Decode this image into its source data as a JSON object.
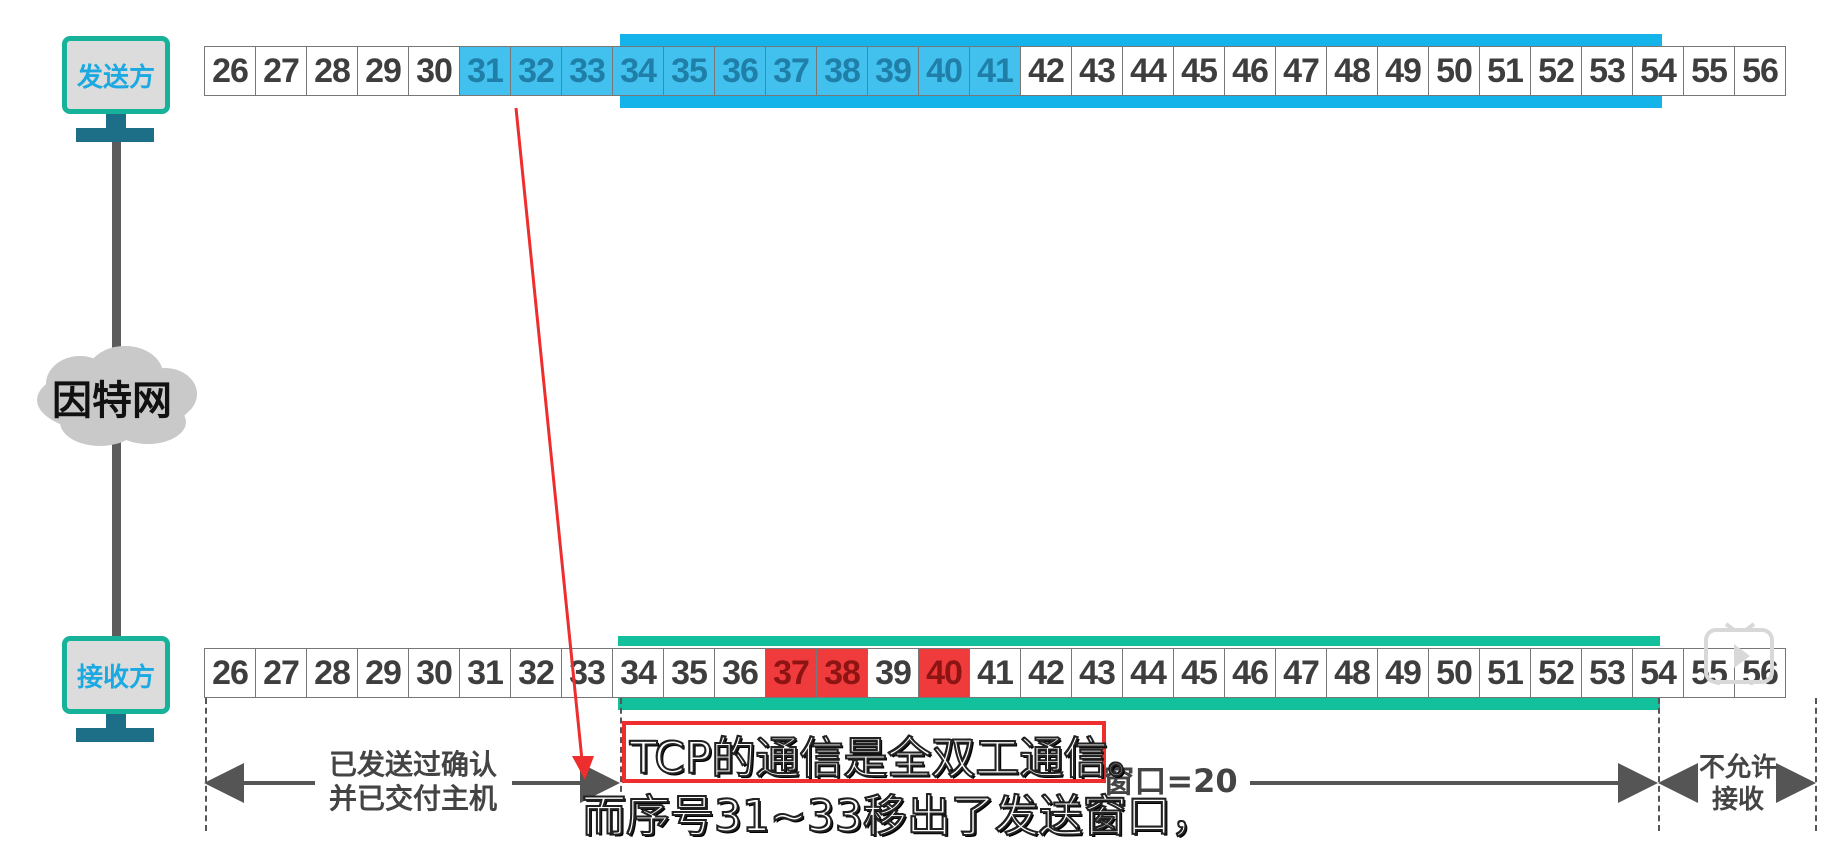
{
  "sender": {
    "label": "发送方"
  },
  "receiver": {
    "label": "接收方"
  },
  "network": {
    "label": "因特网"
  },
  "sender_row": {
    "sequence": [
      26,
      27,
      28,
      29,
      30,
      31,
      32,
      33,
      34,
      35,
      36,
      37,
      38,
      39,
      40,
      41,
      42,
      43,
      44,
      45,
      46,
      47,
      48,
      49,
      50,
      51,
      52,
      53,
      54,
      55,
      56
    ],
    "highlighted_sent": [
      31,
      32,
      33,
      34,
      35,
      36,
      37,
      38,
      39,
      40,
      41
    ],
    "send_window": {
      "from": 34,
      "to": 53
    }
  },
  "receiver_row": {
    "sequence": [
      26,
      27,
      28,
      29,
      30,
      31,
      32,
      33,
      34,
      35,
      36,
      37,
      38,
      39,
      40,
      41,
      42,
      43,
      44,
      45,
      46,
      47,
      48,
      49,
      50,
      51,
      52,
      53,
      54,
      55,
      56
    ],
    "highlighted_received": [
      37,
      38,
      40
    ],
    "receive_window": {
      "from": 34,
      "to": 53
    }
  },
  "dimension_labels": {
    "left_line1": "已发送过确认",
    "left_line2": "并已交付主机",
    "window_label": "窗口=20",
    "right_line1": "不允许",
    "right_line2": "接收"
  },
  "subtitle": {
    "line1": "TCP的通信是全双工通信。",
    "line2": "而序号31~33移出了发送窗口，"
  },
  "colors": {
    "send_window": "#14b3ea",
    "sent_cells": "#42c0ee",
    "receive_window": "#12c09c",
    "received_out_of_order": "#ef3b3b",
    "annotation_arrow": "#ee2e2e"
  }
}
